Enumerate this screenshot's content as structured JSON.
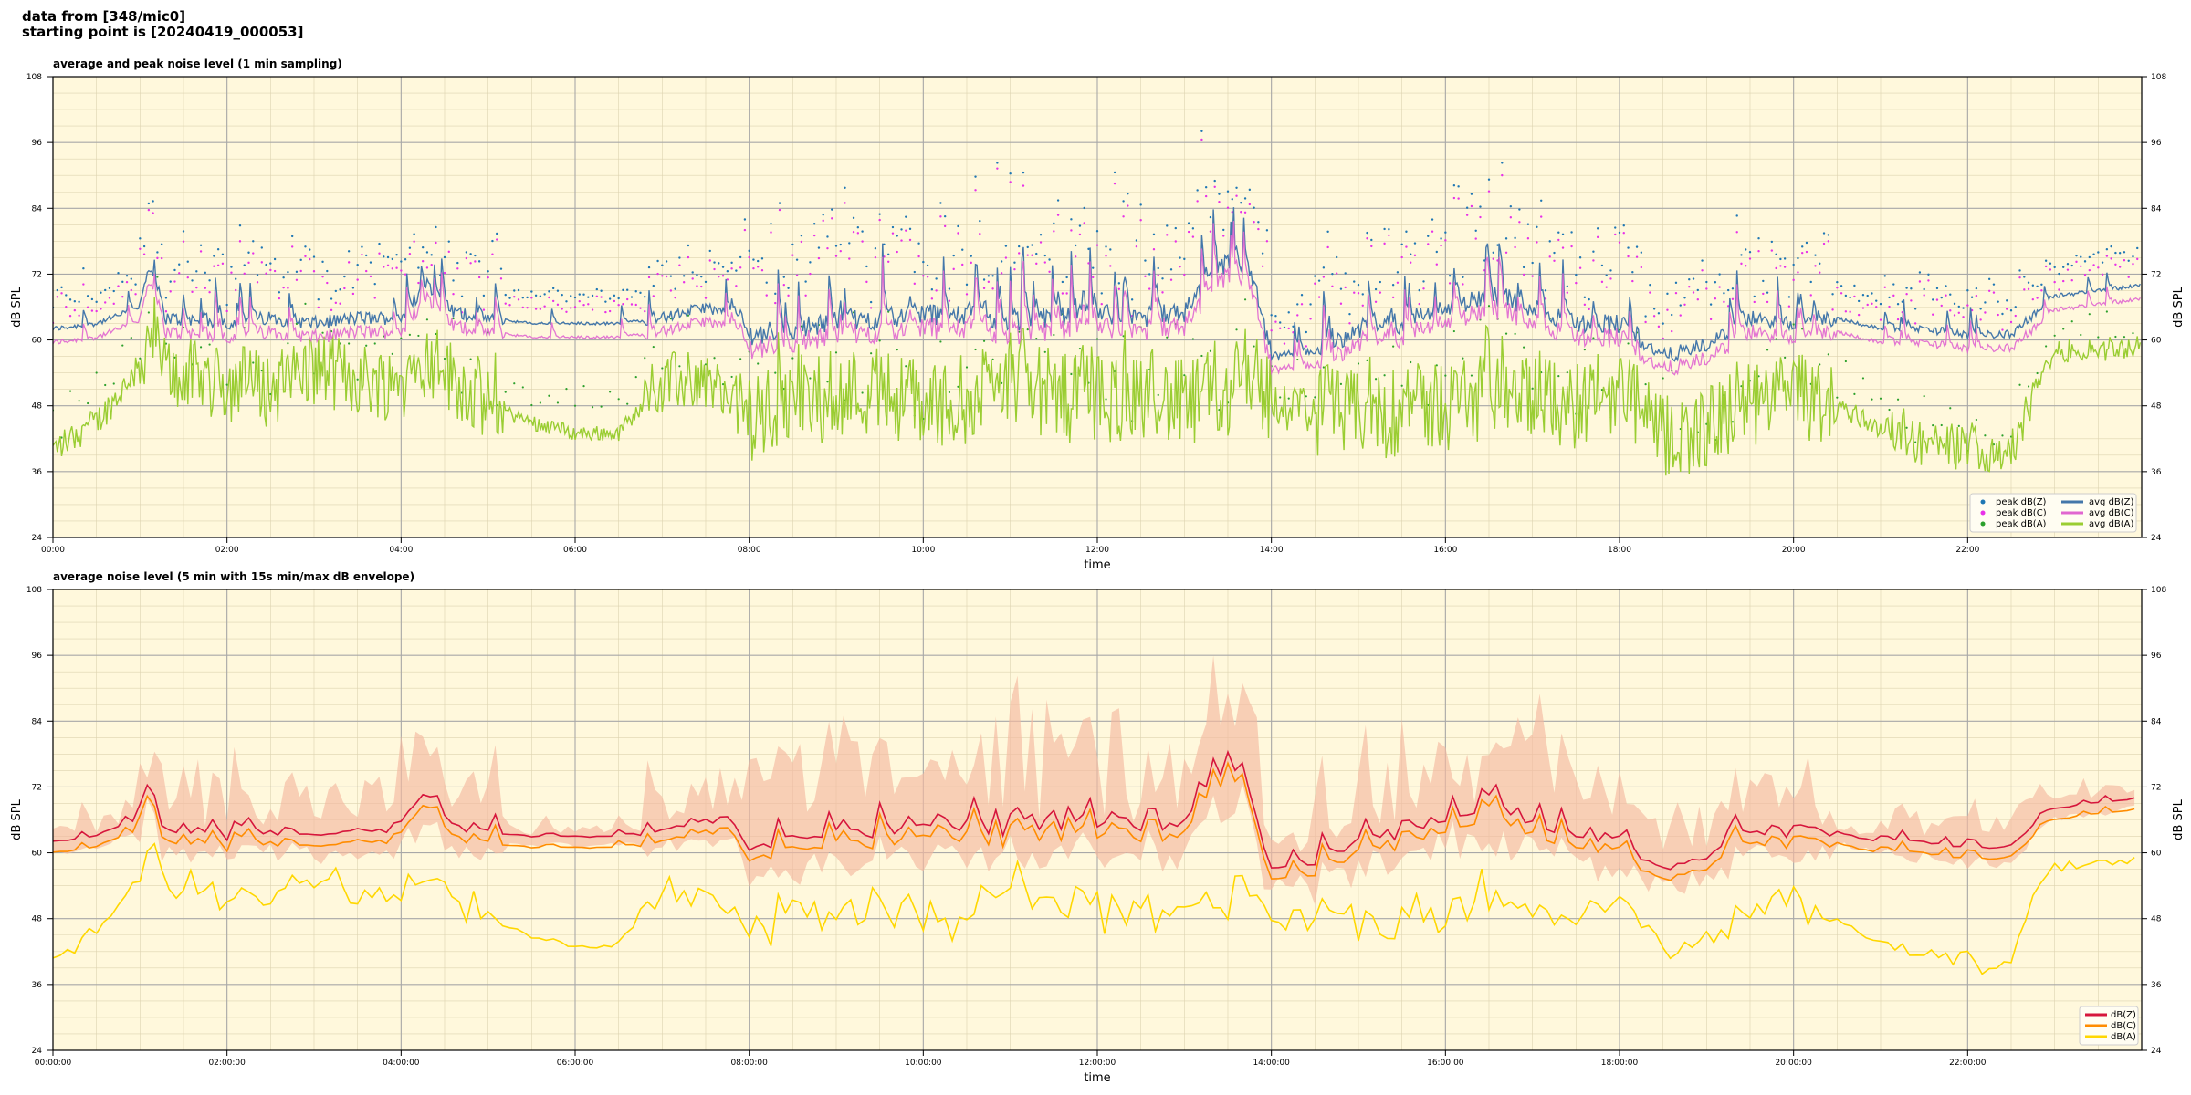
{
  "header": {
    "line1": "data from [348/mic0]",
    "line2": "starting point is [20240419_000053]"
  },
  "chart_data": [
    {
      "type": "scatter+line",
      "title": "average and peak noise level (1 min sampling)",
      "xlabel": "time",
      "ylabel": "dB SPL",
      "xlim_hours": [
        0,
        24
      ],
      "ylim": [
        24,
        108
      ],
      "yticks": [
        "24",
        "36",
        "48",
        "60",
        "72",
        "84",
        "96",
        "108"
      ],
      "xticks": [
        "00:00",
        "02:00",
        "04:00",
        "06:00",
        "08:00",
        "10:00",
        "12:00",
        "14:00",
        "16:00",
        "18:00",
        "20:00",
        "22:00"
      ],
      "grid": true,
      "legend": "bottom-right",
      "series": [
        {
          "name": "peak dB(Z)",
          "kind": "points",
          "color": "#1f77b4"
        },
        {
          "name": "peak dB(C)",
          "kind": "points",
          "color": "#e831e8"
        },
        {
          "name": "peak dB(A)",
          "kind": "points",
          "color": "#2ca02c"
        },
        {
          "name": "avg dB(Z)",
          "kind": "line",
          "color": "#4477aa"
        },
        {
          "name": "avg dB(C)",
          "kind": "line",
          "color": "#e066d0"
        },
        {
          "name": "avg dB(A)",
          "kind": "line",
          "color": "#9acd32"
        }
      ],
      "profile_hours": [
        0,
        0.5,
        1.0,
        1.1,
        1.3,
        2.0,
        2.5,
        3.0,
        3.5,
        4.0,
        4.3,
        4.6,
        5.0,
        5.5,
        6.0,
        6.5,
        7.0,
        7.5,
        7.9,
        8.0,
        8.5,
        9.0,
        9.5,
        10.0,
        10.5,
        11.0,
        11.5,
        12.0,
        12.5,
        13.0,
        13.5,
        13.8,
        14.0,
        14.5,
        15.0,
        15.5,
        16.0,
        16.5,
        17.0,
        17.5,
        18.0,
        18.5,
        19.0,
        19.5,
        20.0,
        20.5,
        21.0,
        21.5,
        22.0,
        22.5,
        23.0,
        23.5,
        24.0
      ],
      "avg_dbz": [
        62,
        63,
        66,
        73,
        64,
        63,
        64,
        63,
        64,
        64,
        70,
        65,
        64,
        63,
        63,
        63,
        64,
        66,
        64,
        61,
        62,
        63,
        64,
        65,
        64,
        63,
        64,
        65,
        64,
        65,
        74,
        70,
        57,
        58,
        62,
        63,
        66,
        68,
        66,
        63,
        63,
        57,
        59,
        64,
        63,
        64,
        62,
        62,
        61,
        61,
        68,
        69,
        70
      ],
      "avg_dba": [
        40,
        45,
        55,
        62,
        54,
        52,
        51,
        55,
        53,
        52,
        56,
        53,
        48,
        45,
        43,
        43,
        52,
        53,
        47,
        46,
        48,
        50,
        51,
        48,
        49,
        52,
        50,
        49,
        50,
        48,
        50,
        55,
        48,
        47,
        46,
        47,
        48,
        50,
        49,
        48,
        51,
        42,
        44,
        48,
        49,
        48,
        44,
        41,
        40,
        40,
        58,
        58,
        59
      ]
    },
    {
      "type": "line",
      "title": "average noise level (5 min with 15s min/max dB envelope)",
      "xlabel": "time",
      "ylabel": "dB SPL",
      "xlim_hours": [
        0,
        24
      ],
      "ylim": [
        24,
        108
      ],
      "yticks": [
        "24",
        "36",
        "48",
        "60",
        "72",
        "84",
        "96",
        "108"
      ],
      "xticks": [
        "00:00:00",
        "02:00:00",
        "04:00:00",
        "06:00:00",
        "08:00:00",
        "10:00:00",
        "12:00:00",
        "14:00:00",
        "16:00:00",
        "18:00:00",
        "20:00:00",
        "22:00:00"
      ],
      "grid": true,
      "legend": "bottom-right",
      "series": [
        {
          "name": "dB(Z)",
          "color": "#d6163c"
        },
        {
          "name": "dB(C)",
          "color": "#ff8c00"
        },
        {
          "name": "dB(A)",
          "color": "#ffd700"
        }
      ],
      "envelope_color": "#f4b8a0"
    }
  ]
}
